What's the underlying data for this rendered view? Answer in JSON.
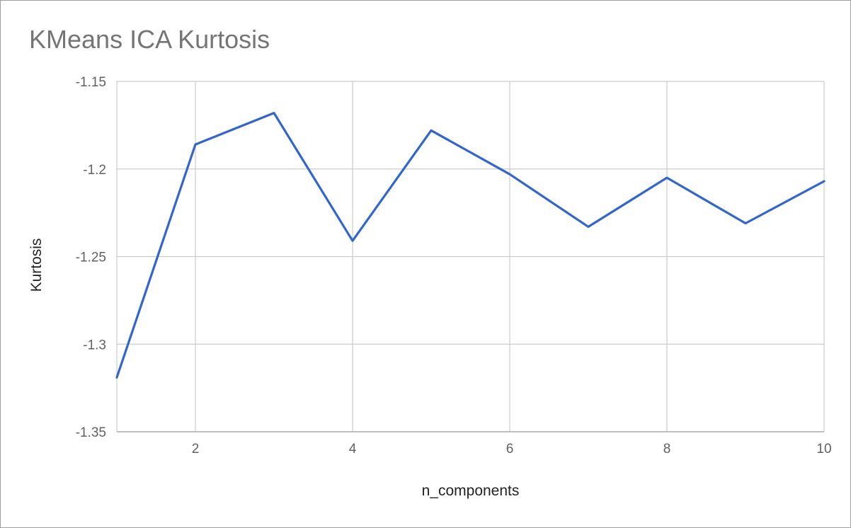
{
  "chart_data": {
    "type": "line",
    "title": "KMeans ICA Kurtosis",
    "xlabel": "n_components",
    "ylabel": "Kurtosis",
    "xlim": [
      1,
      10
    ],
    "ylim": [
      -1.35,
      -1.15
    ],
    "x_ticks": [
      {
        "value": 2,
        "label": "2"
      },
      {
        "value": 4,
        "label": "4"
      },
      {
        "value": 6,
        "label": "6"
      },
      {
        "value": 8,
        "label": "8"
      },
      {
        "value": 10,
        "label": "10"
      }
    ],
    "y_ticks": [
      {
        "value": -1.15,
        "label": "-1.15"
      },
      {
        "value": -1.2,
        "label": "-1.2"
      },
      {
        "value": -1.25,
        "label": "-1.25"
      },
      {
        "value": -1.3,
        "label": "-1.3"
      },
      {
        "value": -1.35,
        "label": "-1.35"
      }
    ],
    "grid": true,
    "legend": "none",
    "series": [
      {
        "color": "#3366cc",
        "x": [
          1,
          2,
          3,
          4,
          5,
          6,
          7,
          8,
          9,
          10
        ],
        "y": [
          -1.319,
          -1.186,
          -1.168,
          -1.241,
          -1.178,
          -1.203,
          -1.233,
          -1.205,
          -1.231,
          -1.207
        ]
      }
    ]
  }
}
